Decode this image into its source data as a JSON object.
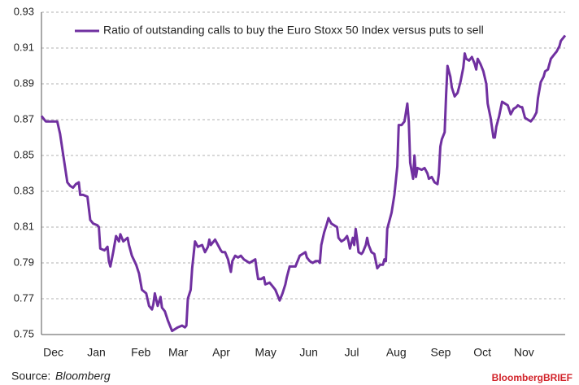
{
  "chart_data": {
    "type": "line",
    "source_label": "Source:",
    "source": "Bloomberg",
    "brand": "BloombergBRIEF",
    "xlim": [
      0,
      365
    ],
    "xticks": [
      {
        "value": 6,
        "label": "Dec"
      },
      {
        "value": 36,
        "label": "Jan"
      },
      {
        "value": 67,
        "label": "Feb"
      },
      {
        "value": 93,
        "label": "Mar"
      },
      {
        "value": 123,
        "label": "Apr"
      },
      {
        "value": 154,
        "label": "May"
      },
      {
        "value": 184,
        "label": "Jun"
      },
      {
        "value": 214,
        "label": "Jul"
      },
      {
        "value": 245,
        "label": "Aug"
      },
      {
        "value": 276,
        "label": "Sep"
      },
      {
        "value": 305,
        "label": "Oct"
      },
      {
        "value": 334,
        "label": "Nov"
      }
    ],
    "ylim": [
      0.75,
      0.93
    ],
    "yticks": [
      0.75,
      0.77,
      0.79,
      0.81,
      0.83,
      0.85,
      0.87,
      0.89,
      0.91,
      0.93
    ],
    "grid": true,
    "legend": "top-left",
    "x": [
      0,
      3,
      7,
      11,
      13,
      15,
      18,
      20,
      22,
      24,
      26,
      27,
      29,
      32,
      34,
      36,
      39,
      40,
      41,
      44,
      46,
      47,
      48,
      50,
      52,
      54,
      55,
      57,
      60,
      61,
      63,
      66,
      68,
      70,
      73,
      75,
      77,
      78,
      79,
      81,
      83,
      84,
      86,
      88,
      90,
      91,
      93,
      95,
      98,
      100,
      101,
      102,
      104,
      105,
      107,
      109,
      112,
      114,
      116,
      117,
      118,
      121,
      123,
      125,
      126,
      128,
      130,
      132,
      133,
      135,
      137,
      139,
      141,
      143,
      145,
      147,
      149,
      150,
      151,
      153,
      155,
      156,
      159,
      161,
      163,
      164,
      166,
      168,
      170,
      171,
      173,
      175,
      177,
      180,
      182,
      184,
      185,
      187,
      189,
      191,
      193,
      194,
      195,
      197,
      199,
      200,
      202,
      204,
      206,
      207,
      209,
      211,
      213,
      214,
      215,
      217,
      218,
      219,
      220,
      221,
      223,
      224,
      226,
      227,
      228,
      230,
      232,
      234,
      236,
      238,
      239,
      240,
      241,
      244,
      246,
      248,
      249,
      251,
      253,
      255,
      256,
      257,
      259,
      260,
      261,
      262,
      265,
      267,
      269,
      270,
      272,
      274,
      276,
      277,
      278,
      279,
      281,
      282,
      283,
      285,
      286,
      288,
      290,
      292,
      294,
      295,
      296,
      298,
      300,
      302,
      303,
      304,
      306,
      308,
      310,
      311,
      313,
      315,
      316,
      317,
      319,
      321,
      323,
      325,
      327,
      329,
      331,
      332,
      334,
      335,
      337,
      339,
      341,
      343,
      345,
      346,
      348,
      350,
      351,
      353,
      355,
      358,
      359,
      361,
      362,
      365
    ],
    "series": [
      {
        "name": "Ratio of outstanding calls to buy the Euro Stoxx 50 Index versus puts to sell",
        "color": "#7030a0",
        "values": [
          0.872,
          0.869,
          0.869,
          0.869,
          0.862,
          0.851,
          0.835,
          0.833,
          0.832,
          0.834,
          0.835,
          0.828,
          0.828,
          0.827,
          0.814,
          0.812,
          0.811,
          0.81,
          0.798,
          0.797,
          0.799,
          0.791,
          0.788,
          0.796,
          0.805,
          0.802,
          0.806,
          0.802,
          0.804,
          0.8,
          0.794,
          0.789,
          0.784,
          0.775,
          0.773,
          0.766,
          0.764,
          0.767,
          0.773,
          0.766,
          0.771,
          0.765,
          0.763,
          0.758,
          0.754,
          0.752,
          0.753,
          0.754,
          0.755,
          0.754,
          0.755,
          0.77,
          0.775,
          0.787,
          0.802,
          0.799,
          0.8,
          0.796,
          0.799,
          0.803,
          0.8,
          0.803,
          0.8,
          0.797,
          0.796,
          0.796,
          0.792,
          0.785,
          0.791,
          0.794,
          0.793,
          0.794,
          0.792,
          0.791,
          0.79,
          0.791,
          0.792,
          0.786,
          0.781,
          0.781,
          0.782,
          0.778,
          0.779,
          0.777,
          0.775,
          0.773,
          0.769,
          0.773,
          0.778,
          0.782,
          0.788,
          0.788,
          0.788,
          0.794,
          0.795,
          0.796,
          0.793,
          0.791,
          0.79,
          0.791,
          0.791,
          0.79,
          0.8,
          0.807,
          0.812,
          0.815,
          0.812,
          0.811,
          0.81,
          0.804,
          0.802,
          0.803,
          0.805,
          0.802,
          0.798,
          0.804,
          0.8,
          0.809,
          0.803,
          0.796,
          0.795,
          0.796,
          0.8,
          0.804,
          0.8,
          0.796,
          0.795,
          0.787,
          0.789,
          0.789,
          0.792,
          0.791,
          0.809,
          0.818,
          0.828,
          0.844,
          0.867,
          0.867,
          0.869,
          0.879,
          0.869,
          0.846,
          0.837,
          0.85,
          0.838,
          0.843,
          0.842,
          0.843,
          0.84,
          0.837,
          0.838,
          0.835,
          0.834,
          0.84,
          0.855,
          0.859,
          0.863,
          0.884,
          0.9,
          0.894,
          0.888,
          0.883,
          0.885,
          0.891,
          0.899,
          0.907,
          0.904,
          0.903,
          0.905,
          0.901,
          0.898,
          0.904,
          0.901,
          0.897,
          0.89,
          0.879,
          0.871,
          0.86,
          0.86,
          0.866,
          0.872,
          0.88,
          0.879,
          0.878,
          0.873,
          0.876,
          0.877,
          0.878,
          0.877,
          0.877,
          0.871,
          0.87,
          0.869,
          0.871,
          0.874,
          0.882,
          0.891,
          0.894,
          0.897,
          0.898,
          0.904,
          0.907,
          0.908,
          0.911,
          0.914,
          0.917
        ]
      }
    ]
  }
}
